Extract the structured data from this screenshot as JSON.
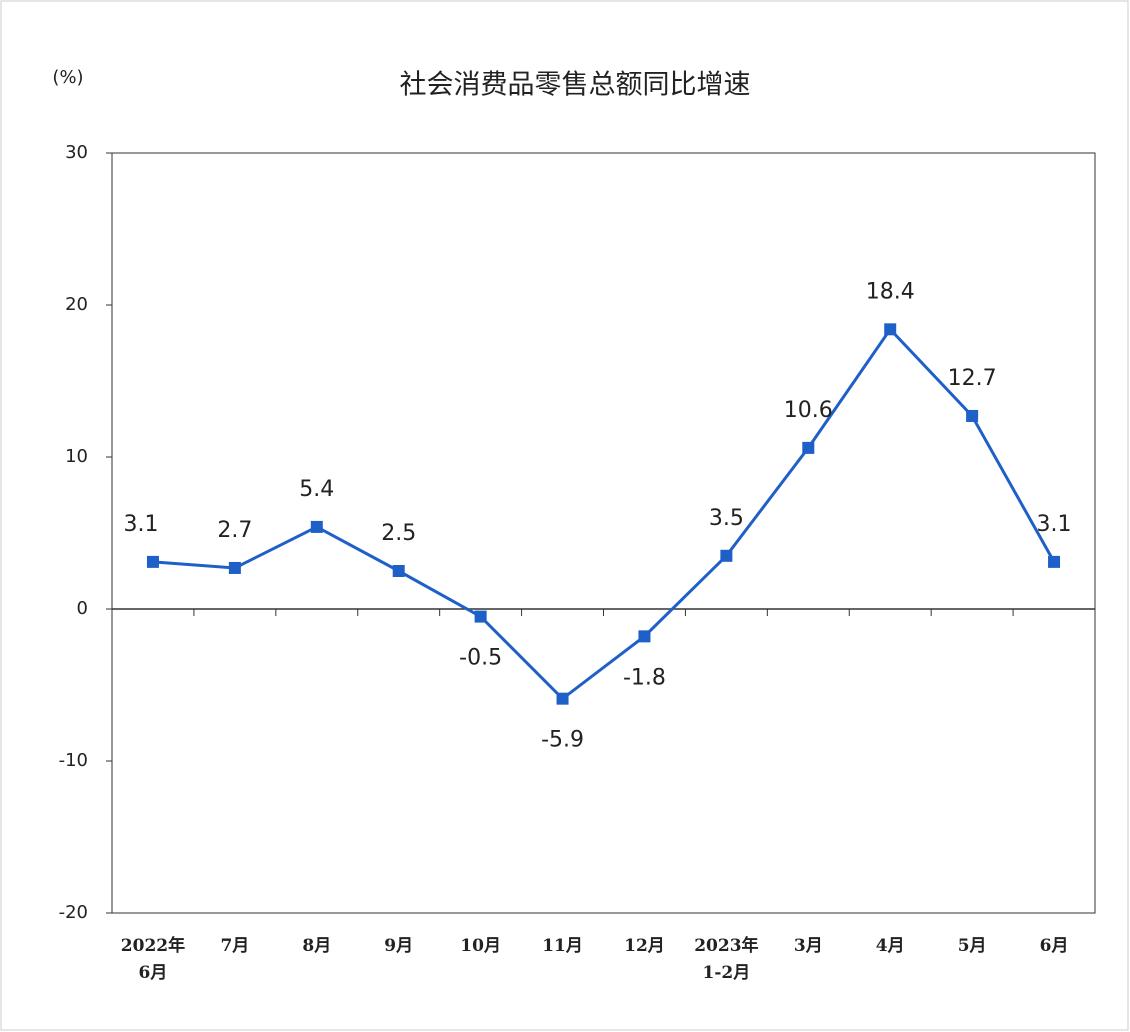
{
  "chart_data": {
    "type": "line",
    "title": "社会消费品零售总额同比增速",
    "y_label": "(%)",
    "categories": [
      "2022年\n6月",
      "7月",
      "8月",
      "9月",
      "10月",
      "11月",
      "12月",
      "2023年\n1-2月",
      "3月",
      "4月",
      "5月",
      "6月"
    ],
    "values": [
      3.1,
      2.7,
      5.4,
      2.5,
      -0.5,
      -5.9,
      -1.8,
      3.5,
      10.6,
      18.4,
      12.7,
      3.1
    ],
    "color": "#1f5fc8",
    "ylim": [
      -20,
      30
    ],
    "yticks": [
      -20,
      -10,
      0,
      10,
      20,
      30
    ]
  }
}
